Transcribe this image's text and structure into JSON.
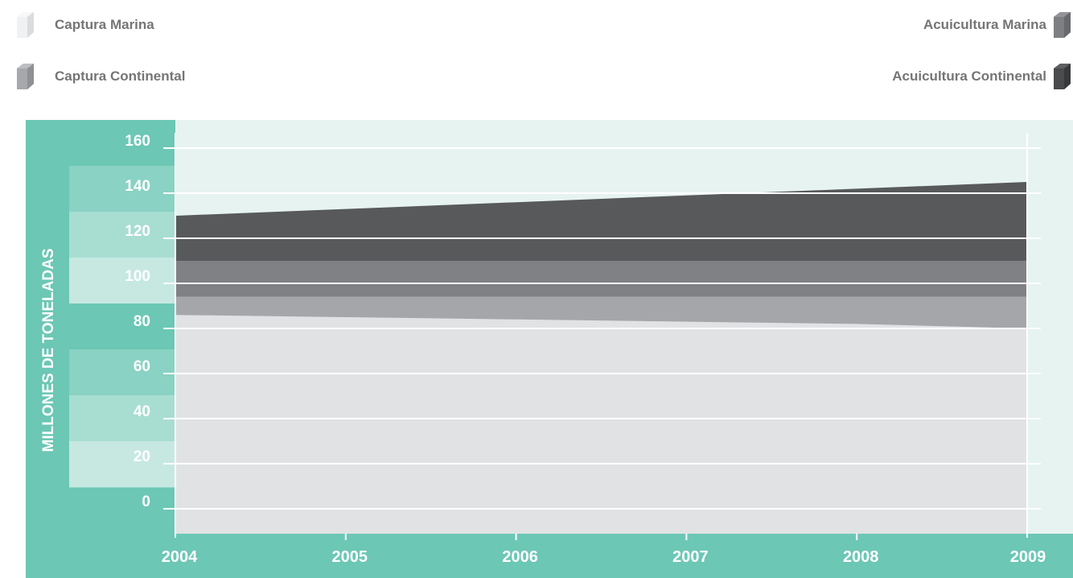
{
  "legend": {
    "captura_marina": "Captura Marina",
    "captura_continental": "Captura Continental",
    "acuicultura_marina": "Acuicultura Marina",
    "acuicultura_continental": "Acuicultura Continental"
  },
  "colors": {
    "teal_frame": "#6cc7b5",
    "plot_background": "#e6f3f1",
    "captura_marina": "#e0e2e4",
    "captura_continental": "#a5a6a9",
    "acuicultura_marina": "#808184",
    "acuicultura_continental": "#58595b"
  },
  "chart_data": {
    "type": "area",
    "stacked": true,
    "x": [
      "2004",
      "2005",
      "2006",
      "2007",
      "2008",
      "2009"
    ],
    "ylabel": "MILLONES DE TONELADAS",
    "xlabel": "",
    "title": "",
    "ylim": [
      0,
      160
    ],
    "yticks": [
      "0",
      "20",
      "40",
      "60",
      "80",
      "100",
      "120",
      "140",
      "160"
    ],
    "grid": true,
    "legend_position": "top",
    "series": [
      {
        "name": "Captura Marina",
        "values": [
          86,
          85,
          84,
          83,
          82,
          80
        ],
        "color": "#e0e2e4"
      },
      {
        "name": "Captura Continental",
        "values": [
          8,
          9,
          10,
          11,
          12,
          14
        ],
        "color": "#a5a6a9"
      },
      {
        "name": "Acuicultura Marina",
        "values": [
          16,
          16,
          16,
          16,
          16,
          16
        ],
        "color": "#808184"
      },
      {
        "name": "Acuicultura Continental",
        "values": [
          20,
          23,
          26,
          29,
          32,
          35
        ],
        "color": "#58595b"
      }
    ]
  }
}
